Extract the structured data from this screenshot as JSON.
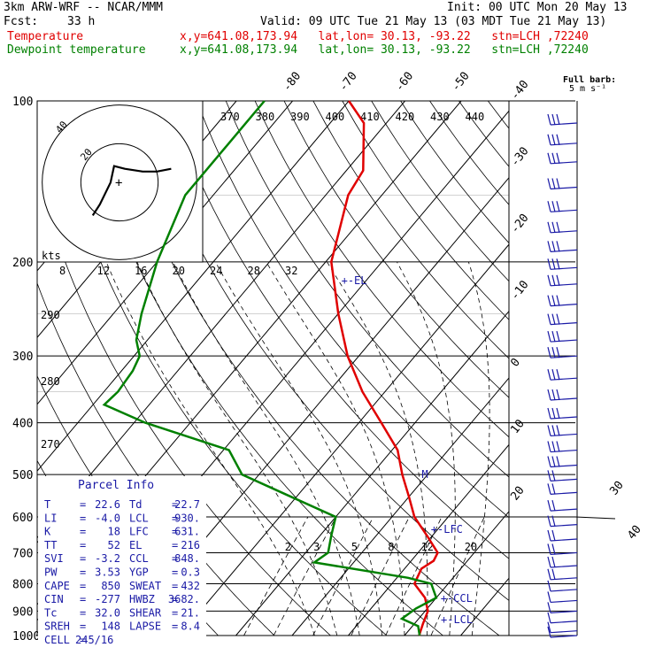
{
  "header": {
    "model": "3km ARW-WRF -- NCAR/MMM",
    "init": "Init: 00 UTC Mon 20 May 13",
    "fcst_label": "Fcst:",
    "fcst_value": "33 h",
    "valid": "Valid: 09 UTC Tue 21 May 13 (03 MDT Tue 21 May 13)",
    "temp_label": "Temperature",
    "dew_label": "Dewpoint temperature",
    "loc_text": "x,y=641.08,173.94   lat,lon= 30.13, -93.22   stn=LCH ,72240"
  },
  "colors": {
    "temperature": "#e00000",
    "dewpoint": "#008000",
    "info": "#1a1aa6",
    "grid": "#000000"
  },
  "chart_data": {
    "type": "line",
    "title": "",
    "xlabel": "",
    "ylabel": "",
    "y_scale": "log-pressure",
    "ylim": [
      1000,
      100
    ],
    "pressure_ticks": [
      100,
      200,
      300,
      400,
      500,
      600,
      700,
      800,
      900,
      1000
    ],
    "isotherm_labels": [
      "-80",
      "-70",
      "-60",
      "-50",
      "-40",
      "-30",
      "-20",
      "-10",
      "0",
      "10",
      "20",
      "30",
      "40"
    ],
    "theta_labels": [
      "370",
      "380",
      "390",
      "400",
      "410",
      "420",
      "430",
      "440"
    ],
    "theta_left_labels": [
      "290",
      "280",
      "270"
    ],
    "mixing_ratio_labels": [
      "2",
      "3",
      "5",
      "8",
      "12",
      "20"
    ],
    "series": [
      {
        "name": "Temperature",
        "points": [
          [
            100,
            -70
          ],
          [
            110,
            -64
          ],
          [
            135,
            -57
          ],
          [
            150,
            -56
          ],
          [
            200,
            -49
          ],
          [
            250,
            -40
          ],
          [
            300,
            -32
          ],
          [
            350,
            -24
          ],
          [
            400,
            -16
          ],
          [
            450,
            -9
          ],
          [
            500,
            -4.5
          ],
          [
            550,
            0
          ],
          [
            600,
            4
          ],
          [
            650,
            9
          ],
          [
            700,
            13.5
          ],
          [
            725,
            14
          ],
          [
            750,
            13
          ],
          [
            800,
            14
          ],
          [
            850,
            18
          ],
          [
            900,
            20.5
          ],
          [
            950,
            21.5
          ],
          [
            1000,
            22.6
          ]
        ]
      },
      {
        "name": "Dewpoint temperature",
        "points": [
          [
            100,
            -85
          ],
          [
            150,
            -85
          ],
          [
            200,
            -80
          ],
          [
            250,
            -75
          ],
          [
            280,
            -72
          ],
          [
            300,
            -69
          ],
          [
            320,
            -68
          ],
          [
            350,
            -67.5
          ],
          [
            370,
            -68
          ],
          [
            400,
            -58
          ],
          [
            450,
            -39
          ],
          [
            500,
            -33
          ],
          [
            550,
            -21
          ],
          [
            600,
            -10
          ],
          [
            650,
            -8
          ],
          [
            700,
            -6
          ],
          [
            730,
            -7
          ],
          [
            780,
            12
          ],
          [
            800,
            17
          ],
          [
            850,
            20
          ],
          [
            890,
            18
          ],
          [
            930,
            17
          ],
          [
            960,
            21
          ],
          [
            1000,
            22.7
          ]
        ]
      }
    ],
    "level_markers": [
      {
        "label": "+-EL",
        "p": 216
      },
      {
        "label": "+-LFC",
        "p": 631
      },
      {
        "label": "+-CCL",
        "p": 848
      },
      {
        "label": "+-LCL",
        "p": 930
      }
    ],
    "m_marker": {
      "label": "M",
      "p": 500
    },
    "hodograph": {
      "ring_labels": [
        "20",
        "40"
      ],
      "speed_labels": [
        "8",
        "12",
        "16",
        "20",
        "24",
        "28",
        "32"
      ],
      "speed_unit": "kts",
      "points": [
        [
          -8,
          14
        ],
        [
          -6,
          10
        ],
        [
          -3,
          2
        ],
        [
          -2,
          -4
        ],
        [
          1,
          -3
        ],
        [
          6,
          -2
        ],
        [
          10,
          -2
        ],
        [
          14,
          -3
        ]
      ]
    },
    "wind_barbs": {
      "legend_title": "Full barb:",
      "legend_units": "5 m s⁻¹",
      "levels": [
        110,
        120,
        130,
        145,
        160,
        175,
        190,
        205,
        220,
        240,
        260,
        280,
        300,
        330,
        360,
        390,
        420,
        450,
        480,
        510,
        540,
        580,
        620,
        660,
        700,
        740,
        780,
        820,
        860,
        900,
        940,
        980,
        1000
      ]
    }
  },
  "parcel_info": {
    "title": "Parcel Info",
    "rows": [
      [
        "T",
        "=",
        "22.6",
        "Td",
        "=",
        "22.7"
      ],
      [
        "LI",
        "=",
        "-4.0",
        "LCL",
        "=",
        "930."
      ],
      [
        "K",
        "=",
        "18",
        "LFC",
        "=",
        "631."
      ],
      [
        "TT",
        "=",
        "52",
        "EL",
        "=",
        "216"
      ],
      [
        "SVI",
        "=",
        "-3.2",
        "CCL",
        "=",
        "848."
      ],
      [
        "PW",
        "=",
        "3.53",
        "YGP",
        "=",
        "0.3"
      ],
      [
        "CAPE",
        "=",
        "850",
        "SWEAT",
        "=",
        "432"
      ],
      [
        "CIN",
        "=",
        "-277",
        "HWBZ",
        "=",
        "3682."
      ],
      [
        "Tc",
        "=",
        "32.0",
        "SHEAR",
        "=",
        "21."
      ],
      [
        "SREH",
        "=",
        "148",
        "LAPSE",
        "=",
        "8.4"
      ],
      [
        "CELL",
        "=",
        "245/16",
        "",
        "",
        ""
      ]
    ]
  }
}
